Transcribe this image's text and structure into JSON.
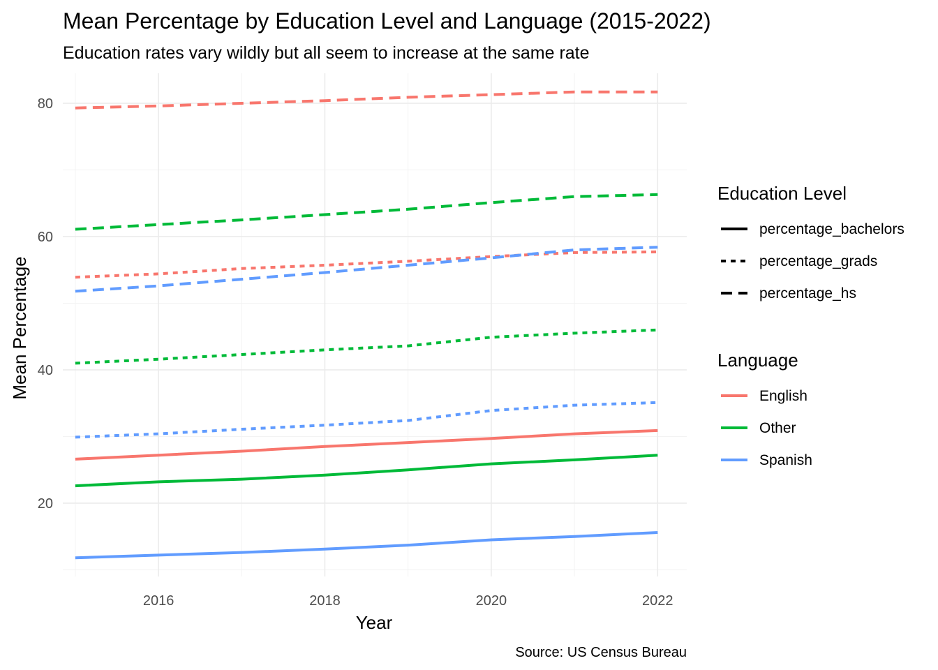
{
  "chart_data": {
    "type": "line",
    "title": "Mean Percentage by Education Level and Language (2015-2022)",
    "subtitle": "Education rates vary wildly but all seem to increase at the same rate",
    "caption": "Source: US Census Bureau",
    "xlabel": "Year",
    "ylabel": "Mean Percentage",
    "xlim": [
      2014.85,
      2022.35
    ],
    "ylim": [
      9.0,
      84.5
    ],
    "x_ticks": [
      2016,
      2018,
      2020,
      2022
    ],
    "y_ticks": [
      20,
      40,
      60,
      80
    ],
    "grid": true,
    "legend_position": "right",
    "legends": {
      "linetype": {
        "title": "Education Level",
        "entries": [
          {
            "label": "percentage_bachelors",
            "dash": "solid"
          },
          {
            "label": "percentage_grads",
            "dash": "dotted"
          },
          {
            "label": "percentage_hs",
            "dash": "dashed"
          }
        ]
      },
      "color": {
        "title": "Language",
        "entries": [
          {
            "label": "English",
            "color": "#F8766D"
          },
          {
            "label": "Other",
            "color": "#00BA38"
          },
          {
            "label": "Spanish",
            "color": "#619CFF"
          }
        ]
      }
    },
    "x": [
      2015,
      2016,
      2017,
      2018,
      2019,
      2020,
      2021,
      2022
    ],
    "series": [
      {
        "language": "English",
        "level": "percentage_hs",
        "color": "#F8766D",
        "dash": "dashed",
        "values": [
          79.3,
          79.6,
          80.0,
          80.4,
          80.9,
          81.3,
          81.7,
          81.7
        ]
      },
      {
        "language": "Other",
        "level": "percentage_hs",
        "color": "#00BA38",
        "dash": "dashed",
        "values": [
          61.1,
          61.8,
          62.5,
          63.3,
          64.1,
          65.1,
          66.0,
          66.3
        ]
      },
      {
        "language": "English",
        "level": "percentage_grads",
        "color": "#F8766D",
        "dash": "dotted",
        "values": [
          53.9,
          54.4,
          55.2,
          55.7,
          56.3,
          57.0,
          57.6,
          57.7
        ]
      },
      {
        "language": "Spanish",
        "level": "percentage_hs",
        "color": "#619CFF",
        "dash": "dashed",
        "values": [
          51.8,
          52.6,
          53.6,
          54.6,
          55.7,
          56.8,
          58.0,
          58.4
        ]
      },
      {
        "language": "Other",
        "level": "percentage_grads",
        "color": "#00BA38",
        "dash": "dotted",
        "values": [
          41.0,
          41.6,
          42.3,
          43.0,
          43.6,
          44.9,
          45.5,
          46.0
        ]
      },
      {
        "language": "Spanish",
        "level": "percentage_grads",
        "color": "#619CFF",
        "dash": "dotted",
        "values": [
          29.9,
          30.4,
          31.1,
          31.7,
          32.4,
          33.9,
          34.7,
          35.1
        ]
      },
      {
        "language": "English",
        "level": "percentage_bachelors",
        "color": "#F8766D",
        "dash": "solid",
        "values": [
          26.6,
          27.2,
          27.8,
          28.5,
          29.1,
          29.7,
          30.4,
          30.9
        ]
      },
      {
        "language": "Other",
        "level": "percentage_bachelors",
        "color": "#00BA38",
        "dash": "solid",
        "values": [
          22.6,
          23.2,
          23.6,
          24.2,
          25.0,
          25.9,
          26.5,
          27.2
        ]
      },
      {
        "language": "Spanish",
        "level": "percentage_bachelors",
        "color": "#619CFF",
        "dash": "solid",
        "values": [
          11.8,
          12.2,
          12.6,
          13.1,
          13.7,
          14.5,
          15.0,
          15.6
        ]
      }
    ]
  }
}
